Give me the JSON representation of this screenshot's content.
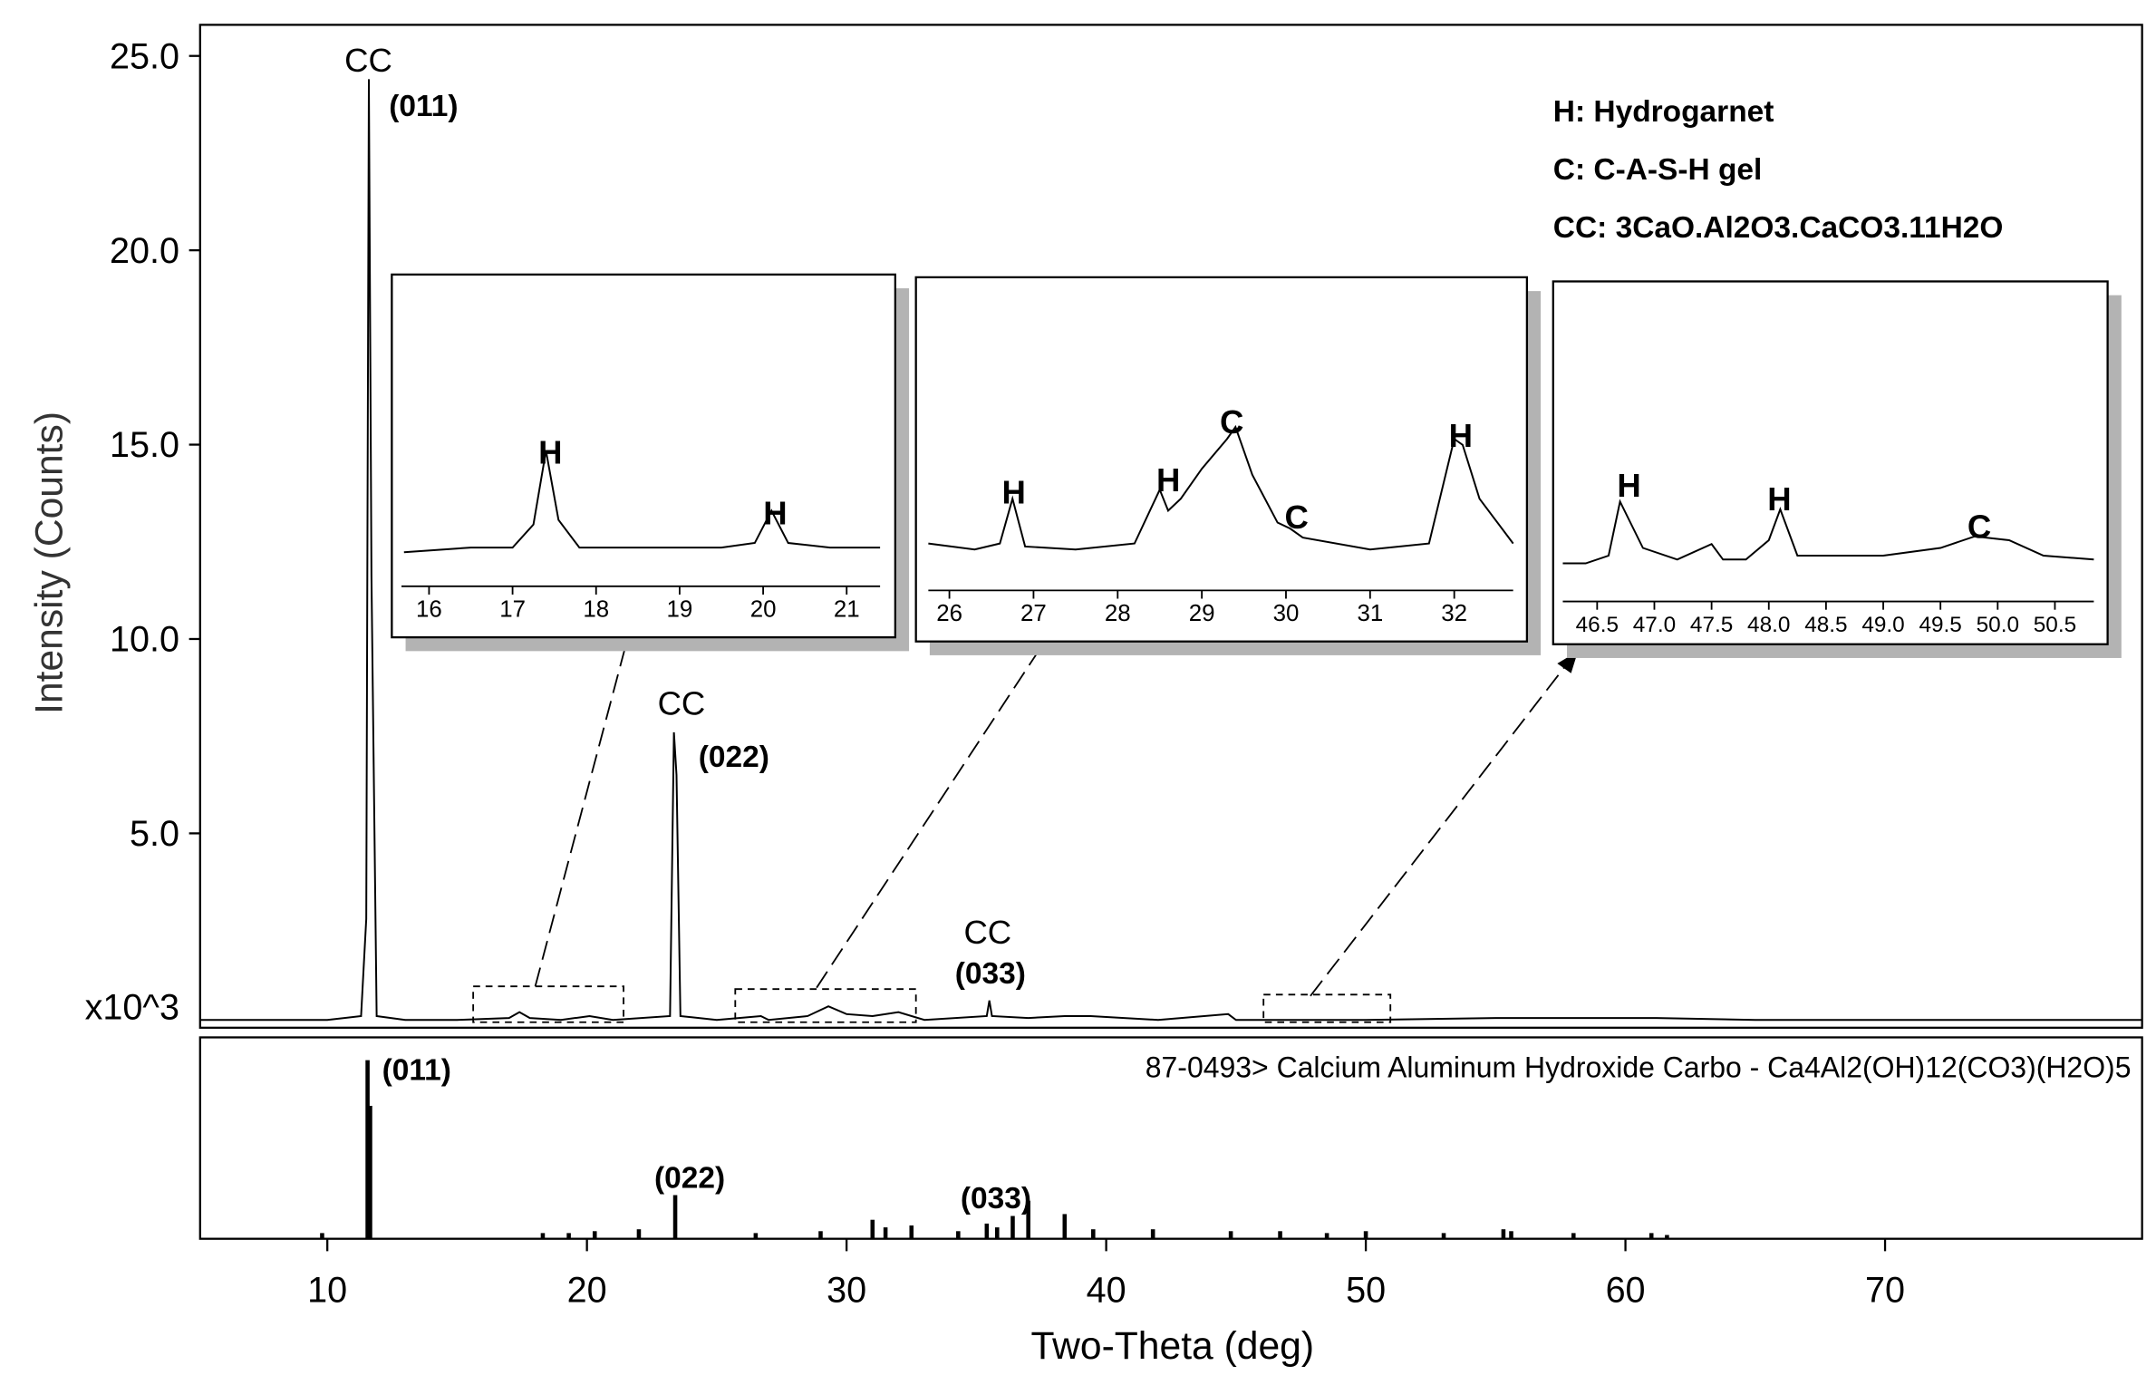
{
  "chart_data": {
    "type": "line",
    "x_label": "Two-Theta (deg)",
    "y_label": "Intensity (Counts)",
    "y_unit_label": "x10^3",
    "color": "#000000",
    "xlim": [
      5.1,
      79.9
    ],
    "xticks": [
      10,
      20,
      30,
      40,
      50,
      60,
      70
    ],
    "ylim": [
      0,
      25.8
    ],
    "yticks": [
      {
        "value": 5,
        "label": "5.0"
      },
      {
        "value": 10,
        "label": "10.0"
      },
      {
        "value": 15,
        "label": "15.0"
      },
      {
        "value": 20,
        "label": "20.0"
      },
      {
        "value": 25,
        "label": "25.0"
      }
    ],
    "x": [
      5.1,
      8,
      10,
      11.3,
      11.5,
      11.6,
      11.7,
      11.9,
      13,
      15,
      17,
      17.4,
      17.8,
      19,
      20.1,
      21,
      23.2,
      23.35,
      23.45,
      23.6,
      25,
      26.7,
      27,
      28.5,
      29.3,
      30,
      31,
      32,
      33,
      35.4,
      35.5,
      35.6,
      37,
      38.4,
      39.4,
      42,
      44.7,
      45,
      47,
      50,
      55,
      61.2,
      65,
      70,
      75,
      79.9
    ],
    "values": [
      0.2,
      0.2,
      0.2,
      0.3,
      2.8,
      24.4,
      11.6,
      0.3,
      0.2,
      0.2,
      0.25,
      0.4,
      0.25,
      0.2,
      0.3,
      0.2,
      0.3,
      7.6,
      6.5,
      0.3,
      0.2,
      0.3,
      0.2,
      0.3,
      0.55,
      0.35,
      0.3,
      0.4,
      0.2,
      0.3,
      0.7,
      0.3,
      0.25,
      0.3,
      0.3,
      0.2,
      0.35,
      0.2,
      0.2,
      0.2,
      0.25,
      0.25,
      0.2,
      0.2,
      0.2,
      0.2
    ],
    "annotations": [
      "CC",
      "(011)",
      "CC",
      "(022)",
      "CC",
      "(033)"
    ],
    "legend": [
      "H: Hydrogarnet",
      "C: C-A-S-H gel",
      "CC: 3CaO.Al2O3.CaCO3.11H2O"
    ],
    "insets": [
      {
        "xlim": [
          15.67,
          21.4
        ],
        "xticks": [
          16,
          17,
          18,
          19,
          20,
          21
        ],
        "ylim": [
          0.15,
          0.5
        ],
        "x": [
          15.7,
          16.5,
          17.0,
          17.25,
          17.4,
          17.55,
          17.8,
          18.5,
          19.5,
          19.9,
          20.1,
          20.3,
          20.8,
          21.4
        ],
        "values": [
          0.2,
          0.21,
          0.21,
          0.26,
          0.42,
          0.27,
          0.21,
          0.21,
          0.21,
          0.22,
          0.29,
          0.22,
          0.21,
          0.21
        ],
        "annotations": [
          "H",
          "H"
        ]
      },
      {
        "xlim": [
          25.75,
          32.7
        ],
        "xticks": [
          26,
          27,
          28,
          29,
          30,
          31,
          32
        ],
        "ylim": [
          0.15,
          0.75
        ],
        "x": [
          25.75,
          26.3,
          26.6,
          26.75,
          26.9,
          27.5,
          28.2,
          28.5,
          28.6,
          28.75,
          29.0,
          29.3,
          29.4,
          29.6,
          29.9,
          30.05,
          30.2,
          31.0,
          31.7,
          32.0,
          32.1,
          32.3,
          32.7
        ],
        "values": [
          0.27,
          0.25,
          0.27,
          0.42,
          0.26,
          0.25,
          0.27,
          0.45,
          0.38,
          0.42,
          0.52,
          0.62,
          0.66,
          0.5,
          0.34,
          0.32,
          0.29,
          0.25,
          0.27,
          0.62,
          0.6,
          0.42,
          0.27
        ],
        "annotations": [
          "H",
          "H",
          "C",
          "C",
          "H"
        ]
      },
      {
        "xlim": [
          46.2,
          50.84
        ],
        "xticks": [
          46.5,
          {
            "value": 47,
            "label": "47.0"
          },
          47.5,
          {
            "value": 48,
            "label": "48.0"
          },
          48.5,
          {
            "value": 49,
            "label": "49.0"
          },
          49.5,
          {
            "value": 50,
            "label": "50.0"
          },
          50.5
        ],
        "ylim": [
          0.15,
          0.5
        ],
        "x": [
          46.2,
          46.4,
          46.6,
          46.7,
          46.9,
          47.2,
          47.5,
          47.6,
          47.8,
          48.0,
          48.1,
          48.25,
          48.5,
          49.0,
          49.5,
          49.8,
          50.1,
          50.4,
          50.84
        ],
        "values": [
          0.22,
          0.22,
          0.24,
          0.38,
          0.26,
          0.23,
          0.27,
          0.23,
          0.23,
          0.28,
          0.36,
          0.24,
          0.24,
          0.24,
          0.26,
          0.29,
          0.28,
          0.24,
          0.23
        ],
        "annotations": [
          "H",
          "H",
          "C"
        ]
      }
    ],
    "reference": {
      "label": "87-0493> Calcium Aluminum Hydroxide Carbo - Ca4Al2(OH)12(CO3)(H2O)5",
      "ylim": [
        0,
        106
      ],
      "x": [
        9.8,
        11.55,
        11.65,
        18.3,
        19.3,
        20.3,
        22.0,
        23.4,
        26.5,
        29.0,
        31.0,
        31.5,
        32.5,
        34.3,
        35.4,
        35.8,
        36.4,
        37.0,
        38.4,
        39.5,
        41.8,
        44.8,
        46.7,
        48.5,
        50.0,
        53.0,
        55.3,
        55.6,
        58.0,
        61.0,
        61.6
      ],
      "values": [
        3,
        94,
        70,
        3,
        3,
        4,
        5,
        23,
        3,
        4,
        10,
        6,
        7,
        4,
        8,
        6,
        12,
        20,
        13,
        5,
        5,
        4,
        4,
        3,
        4,
        3,
        5,
        4,
        3,
        3,
        2
      ],
      "annotations": [
        "(011)",
        "(022)",
        "(033)"
      ]
    }
  }
}
